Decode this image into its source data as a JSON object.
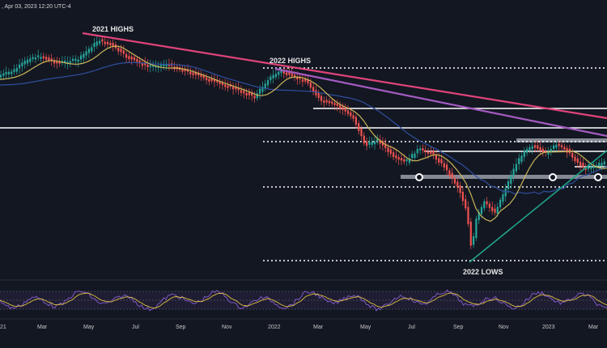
{
  "header": {
    "timestamp_text": ", Apr 03, 2023 12:20 UTC-4"
  },
  "chart_data": {
    "type": "candlestick",
    "annotations": {
      "highs_2021": "2021 HIGHS",
      "highs_2022": "2022 HIGHS",
      "lows_2022": "2022 LOWS"
    },
    "x_tick_labels": [
      "21",
      "Mar",
      "May",
      "Jul",
      "Sep",
      "Nov",
      "2022",
      "Mar",
      "May",
      "Jul",
      "Sep",
      "Nov",
      "2023",
      "Mar"
    ],
    "oscillator": {
      "present": true,
      "has_signal_line": true
    },
    "moving_averages": [
      "short",
      "long"
    ],
    "grid": false,
    "colors": {
      "background": "#131722",
      "up_candle": "#26a69a",
      "down_candle": "#ef5350",
      "ma_short": "#c9b458",
      "ma_long": "#2f4f9f",
      "trend_2021": "#e0447a",
      "trend_2022": "#a55bc2",
      "support_trend": "#1fa38a",
      "levels": "#ffffff",
      "oscillator": "#7e57c2",
      "signal": "#e0c040"
    }
  }
}
